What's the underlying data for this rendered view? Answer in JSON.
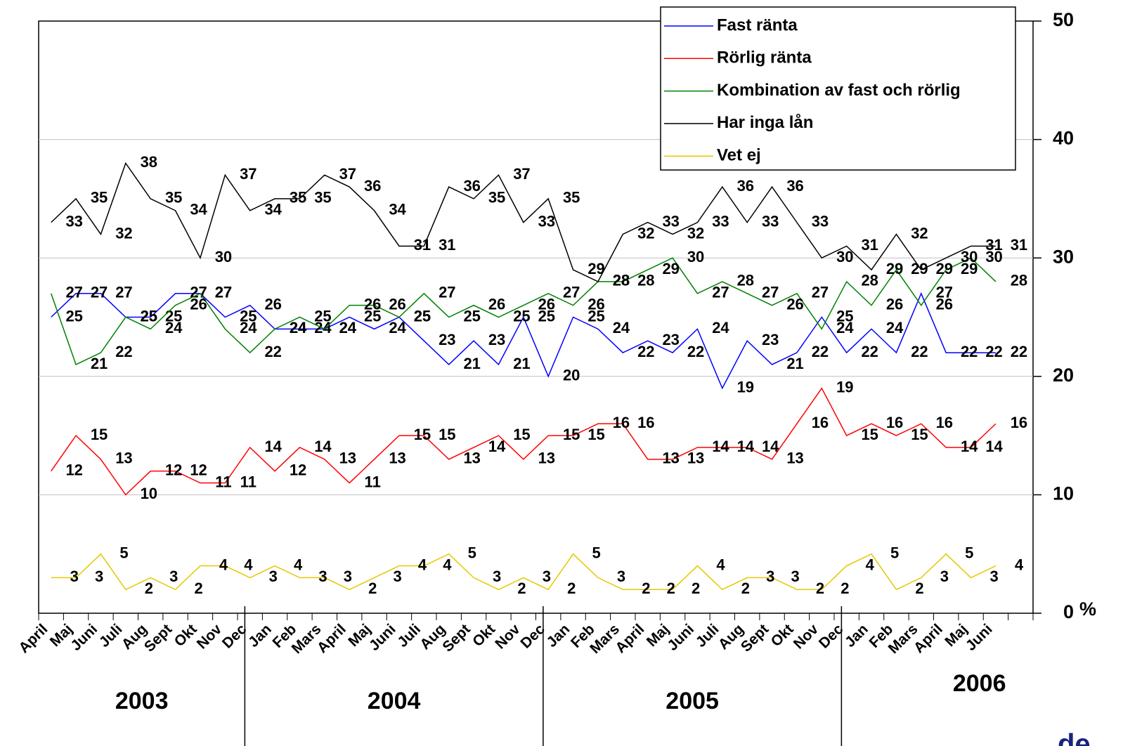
{
  "chart_data": {
    "type": "line",
    "categories": [
      "April",
      "Maj",
      "Juni",
      "Juli",
      "Aug",
      "Sept",
      "Okt",
      "Nov",
      "Dec",
      "Jan",
      "Feb",
      "Mars",
      "April",
      "Maj",
      "Juni",
      "Juli",
      "Aug",
      "Sept",
      "Okt",
      "Nov",
      "Dec",
      "Jan",
      "Feb",
      "Mars",
      "April",
      "Maj",
      "Juni",
      "Juli",
      "Aug",
      "Sept",
      "Okt",
      "Nov",
      "Dec",
      "Jan",
      "Feb",
      "Mars",
      "April",
      "Maj",
      "Juni"
    ],
    "years": [
      "2003",
      "2004",
      "2005",
      "2006"
    ],
    "series": [
      {
        "name": "Fast ränta",
        "color": "#0000ff",
        "values": [
          25,
          27,
          27,
          25,
          25,
          27,
          27,
          25,
          26,
          24,
          24,
          24,
          25,
          24,
          25,
          23,
          21,
          23,
          21,
          25,
          20,
          25,
          24,
          22,
          23,
          22,
          24,
          19,
          23,
          21,
          22,
          25,
          22,
          24,
          22,
          27,
          22,
          22,
          22
        ]
      },
      {
        "name": "Rörlig ränta",
        "color": "#ff0000",
        "values": [
          12,
          15,
          13,
          10,
          12,
          12,
          11,
          11,
          14,
          12,
          14,
          13,
          11,
          13,
          15,
          15,
          13,
          14,
          15,
          13,
          15,
          15,
          16,
          16,
          13,
          13,
          14,
          14,
          14,
          13,
          16,
          19,
          15,
          16,
          15,
          16,
          14,
          14,
          16
        ]
      },
      {
        "name": "Kombination av fast och rörlig",
        "color": "#008000",
        "values": [
          27,
          21,
          22,
          25,
          24,
          26,
          27,
          24,
          22,
          24,
          25,
          24,
          26,
          26,
          25,
          27,
          25,
          26,
          25,
          26,
          27,
          26,
          28,
          28,
          29,
          30,
          27,
          28,
          27,
          26,
          27,
          24,
          28,
          26,
          29,
          26,
          29,
          30,
          28
        ]
      },
      {
        "name": "Har inga lån",
        "color": "#000000",
        "values": [
          33,
          35,
          32,
          38,
          35,
          34,
          30,
          37,
          34,
          35,
          35,
          37,
          36,
          34,
          31,
          31,
          36,
          35,
          37,
          33,
          35,
          29,
          28,
          32,
          33,
          32,
          33,
          36,
          33,
          36,
          33,
          30,
          31,
          29,
          32,
          29,
          30,
          31,
          31
        ]
      },
      {
        "name": "Vet ej",
        "color": "#e6c800",
        "values": [
          3,
          3,
          5,
          2,
          3,
          2,
          4,
          4,
          3,
          4,
          3,
          3,
          2,
          3,
          4,
          4,
          5,
          3,
          2,
          3,
          2,
          5,
          3,
          2,
          2,
          2,
          4,
          2,
          3,
          3,
          2,
          2,
          4,
          5,
          2,
          3,
          5,
          3,
          4
        ]
      }
    ],
    "ylim": [
      0,
      50
    ],
    "yticks": [
      0,
      10,
      20,
      30,
      40,
      50
    ],
    "y_unit": "%",
    "grid": true,
    "legend": "top-right"
  },
  "footer_logo": "de"
}
